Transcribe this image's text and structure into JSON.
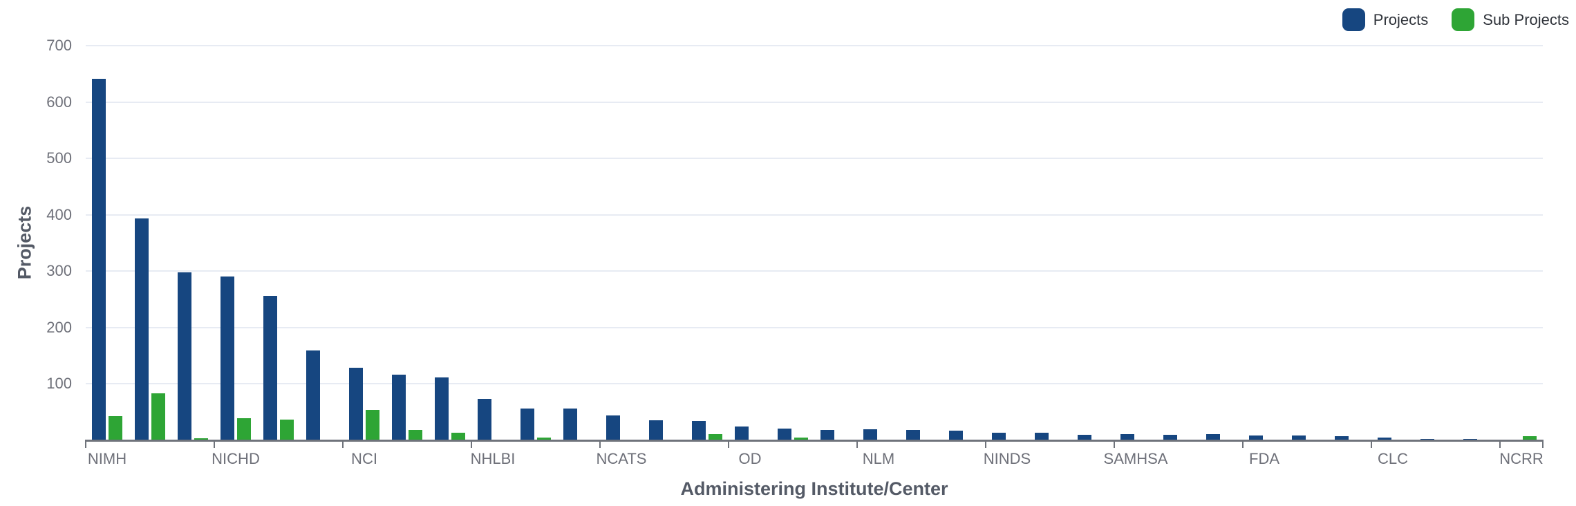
{
  "chart_data": {
    "type": "bar",
    "title": "",
    "xlabel": "Administering Institute/Center",
    "ylabel": "Projects",
    "categories": [
      "NIMH",
      "",
      "",
      "NICHD",
      "",
      "",
      "NCI",
      "",
      "",
      "NHLBI",
      "",
      "",
      "NCATS",
      "",
      "",
      "OD",
      "",
      "",
      "NLM",
      "",
      "",
      "NINDS",
      "",
      "",
      "SAMHSA",
      "",
      "",
      "FDA",
      "",
      "",
      "CLC",
      "",
      "",
      "NCRR"
    ],
    "x_tick_labels": [
      "NIMH",
      "NICHD",
      "NCI",
      "NHLBI",
      "NCATS",
      "OD",
      "NLM",
      "NINDS",
      "SAMHSA",
      "FDA",
      "CLC",
      "NCRR"
    ],
    "label_every_n_categories": 3,
    "series": [
      {
        "name": "Projects",
        "color": "#164680",
        "values": [
          641,
          394,
          298,
          290,
          256,
          159,
          129,
          117,
          112,
          73,
          57,
          56,
          44,
          35,
          34,
          25,
          21,
          19,
          20,
          19,
          17,
          14,
          13,
          10,
          11,
          10,
          11,
          8,
          8,
          7,
          5,
          3,
          3,
          1
        ]
      },
      {
        "name": "Sub Projects",
        "color": "#2EA535",
        "values": [
          43,
          83,
          4,
          39,
          37,
          0,
          54,
          19,
          13,
          0,
          5,
          0,
          0,
          0,
          11,
          0,
          5,
          0,
          0,
          0,
          0,
          0,
          0,
          0,
          0,
          0,
          0,
          0,
          0,
          0,
          0,
          0,
          0,
          7
        ]
      }
    ],
    "ylim": [
      0,
      700
    ],
    "y_ticks": [
      100,
      200,
      300,
      400,
      500,
      600,
      700
    ],
    "grid": true,
    "legend_position": "top-right"
  },
  "legend": {
    "items": [
      {
        "label": "Projects",
        "color": "#164680"
      },
      {
        "label": "Sub Projects",
        "color": "#2EA535"
      }
    ]
  },
  "axes": {
    "x_name": "Administering Institute/Center",
    "y_name": "Projects"
  },
  "colors": {
    "grid": "#E7EBF3",
    "axis": "#6F737B",
    "tick_label": "#6E7079",
    "axis_name": "#545A66",
    "legend_text": "#2F333A",
    "background": "#FFFFFF"
  }
}
